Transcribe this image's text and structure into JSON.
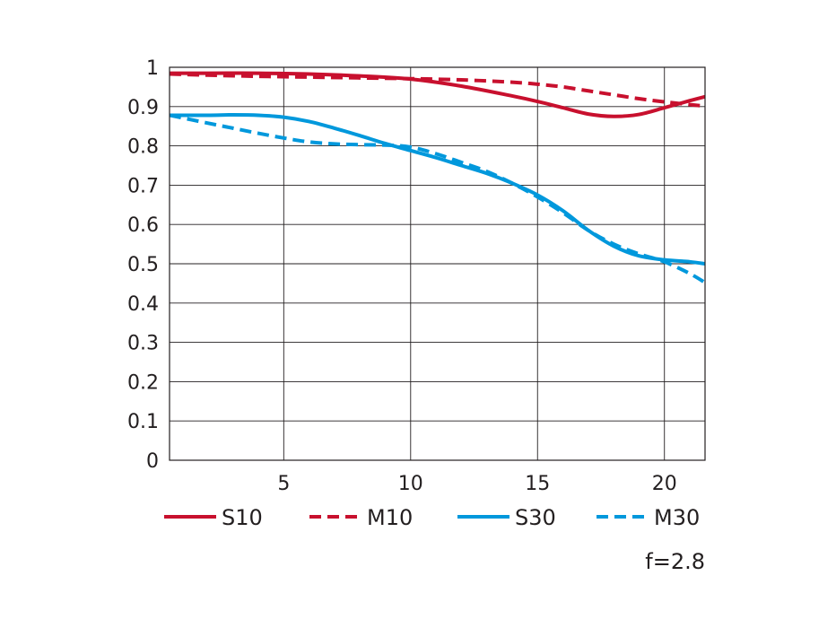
{
  "chart_data": {
    "type": "line",
    "title": "",
    "xlabel": "",
    "ylabel": "",
    "xlim": [
      0.5,
      21.6
    ],
    "ylim": [
      0,
      1
    ],
    "x_ticks": [
      5,
      10,
      15,
      20
    ],
    "y_ticks": [
      0,
      0.1,
      0.2,
      0.3,
      0.4,
      0.5,
      0.6,
      0.7,
      0.8,
      0.9,
      1
    ],
    "y_tick_labels": [
      "0",
      "0.1",
      "0.2",
      "0.3",
      "0.4",
      "0.5",
      "0.6",
      "0.7",
      "0.8",
      "0.9",
      "1"
    ],
    "grid": true,
    "legend_position": "bottom",
    "note": "f=2.8",
    "series": [
      {
        "name": "S10",
        "color": "#c8102e",
        "dash": "solid",
        "x": [
          0.5,
          2,
          4,
          6,
          8,
          10,
          12,
          14,
          15,
          16,
          17,
          18,
          19,
          20,
          21,
          21.6
        ],
        "y": [
          0.985,
          0.985,
          0.985,
          0.983,
          0.978,
          0.97,
          0.952,
          0.927,
          0.913,
          0.897,
          0.881,
          0.875,
          0.88,
          0.897,
          0.915,
          0.925
        ]
      },
      {
        "name": "M10",
        "color": "#c8102e",
        "dash": "dashed",
        "x": [
          0.5,
          2,
          4,
          6,
          8,
          10,
          12,
          14,
          15,
          16,
          17,
          18,
          19,
          20,
          21,
          21.6
        ],
        "y": [
          0.983,
          0.98,
          0.977,
          0.975,
          0.973,
          0.971,
          0.968,
          0.962,
          0.957,
          0.95,
          0.94,
          0.93,
          0.92,
          0.912,
          0.905,
          0.901
        ]
      },
      {
        "name": "S30",
        "color": "#0098dc",
        "dash": "solid",
        "x": [
          0.5,
          2,
          3,
          4,
          5,
          6,
          7,
          8,
          9,
          10,
          11,
          12,
          13,
          14,
          15,
          16,
          17,
          18,
          19,
          20,
          21,
          21.6
        ],
        "y": [
          0.878,
          0.878,
          0.879,
          0.878,
          0.873,
          0.862,
          0.845,
          0.826,
          0.806,
          0.788,
          0.77,
          0.75,
          0.73,
          0.705,
          0.675,
          0.635,
          0.585,
          0.545,
          0.52,
          0.51,
          0.505,
          0.5
        ]
      },
      {
        "name": "M30",
        "color": "#0098dc",
        "dash": "dashed",
        "x": [
          0.5,
          2,
          3,
          4,
          5,
          6,
          7,
          8,
          9,
          10,
          11,
          12,
          13,
          14,
          15,
          16,
          17,
          18,
          19,
          20,
          21,
          21.6
        ],
        "y": [
          0.878,
          0.858,
          0.845,
          0.832,
          0.82,
          0.81,
          0.805,
          0.803,
          0.802,
          0.797,
          0.78,
          0.758,
          0.735,
          0.705,
          0.67,
          0.63,
          0.585,
          0.55,
          0.525,
          0.505,
          0.475,
          0.452
        ]
      }
    ]
  }
}
